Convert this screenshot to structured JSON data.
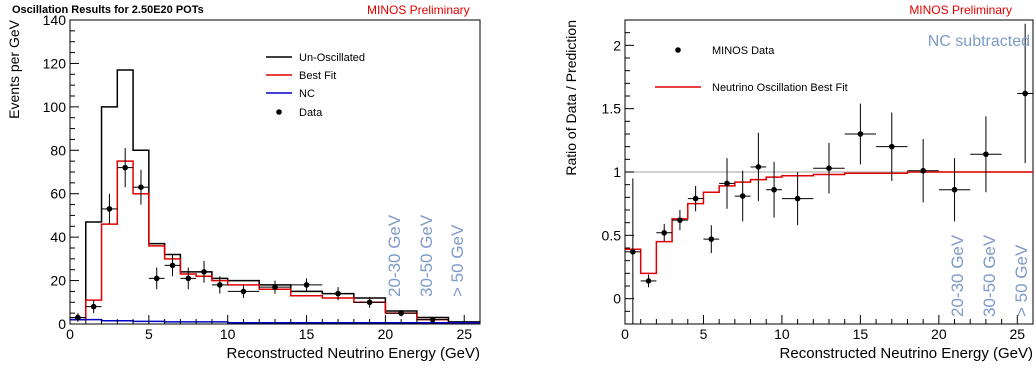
{
  "chart_data": [
    {
      "type": "line",
      "title": "Oscillation Results for 2.50E20 POTs",
      "badge": "MINOS Preliminary",
      "xlabel": "Reconstructed Neutrino Energy (GeV)",
      "ylabel": "Events per GeV",
      "xlim": [
        0,
        26
      ],
      "ylim": [
        0,
        140
      ],
      "xticks": [
        0,
        5,
        10,
        15,
        20,
        25
      ],
      "yticks": [
        0,
        20,
        40,
        60,
        80,
        100,
        120,
        140
      ],
      "legend_position": "top-right",
      "legend": [
        "Un-Oscillated",
        "Best Fit",
        "NC",
        "Data"
      ],
      "series": [
        {
          "name": "Un-Oscillated",
          "color": "#000000",
          "style": "step",
          "bins": [
            [
              0,
              1,
              2
            ],
            [
              1,
              2,
              47
            ],
            [
              2,
              3,
              100
            ],
            [
              3,
              4,
              117
            ],
            [
              4,
              5,
              80
            ],
            [
              5,
              6,
              37
            ],
            [
              6,
              7,
              32
            ],
            [
              7,
              8,
              24
            ],
            [
              8,
              9,
              24
            ],
            [
              9,
              10,
              21
            ],
            [
              10,
              12,
              20
            ],
            [
              12,
              14,
              18
            ],
            [
              14,
              16,
              15
            ],
            [
              16,
              18,
              14
            ],
            [
              18,
              20,
              12
            ],
            [
              20,
              22,
              6
            ],
            [
              22,
              24,
              3
            ],
            [
              24,
              26,
              1
            ]
          ]
        },
        {
          "name": "Best Fit",
          "color": "#e00000",
          "style": "step",
          "bins": [
            [
              0,
              1,
              2
            ],
            [
              1,
              2,
              11
            ],
            [
              2,
              3,
              46
            ],
            [
              3,
              4,
              75
            ],
            [
              4,
              5,
              60
            ],
            [
              5,
              6,
              36
            ],
            [
              6,
              7,
              30
            ],
            [
              7,
              8,
              23
            ],
            [
              8,
              9,
              22
            ],
            [
              9,
              10,
              20
            ],
            [
              10,
              12,
              18
            ],
            [
              12,
              14,
              16
            ],
            [
              14,
              16,
              13
            ],
            [
              16,
              18,
              12
            ],
            [
              18,
              20,
              10
            ],
            [
              20,
              22,
              5
            ],
            [
              22,
              24,
              2
            ],
            [
              24,
              26,
              0.5
            ]
          ]
        },
        {
          "name": "NC",
          "color": "#0000c8",
          "style": "step",
          "bins": [
            [
              0,
              2,
              2
            ],
            [
              2,
              4,
              1.5
            ],
            [
              4,
              6,
              1.2
            ],
            [
              6,
              10,
              1
            ],
            [
              10,
              26,
              0.6
            ]
          ]
        },
        {
          "name": "Data",
          "color": "#000000",
          "style": "points",
          "points": [
            {
              "x": 0.5,
              "y": 3,
              "xerr": 0.5,
              "yerr": 2
            },
            {
              "x": 1.5,
              "y": 8,
              "xerr": 0.5,
              "yerr": 3
            },
            {
              "x": 2.5,
              "y": 53,
              "xerr": 0.5,
              "yerr": 7
            },
            {
              "x": 3.5,
              "y": 72,
              "xerr": 0.5,
              "yerr": 9
            },
            {
              "x": 4.5,
              "y": 63,
              "xerr": 0.5,
              "yerr": 8
            },
            {
              "x": 5.5,
              "y": 21,
              "xerr": 0.5,
              "yerr": 5
            },
            {
              "x": 6.5,
              "y": 27,
              "xerr": 0.5,
              "yerr": 5
            },
            {
              "x": 7.5,
              "y": 21,
              "xerr": 0.5,
              "yerr": 5
            },
            {
              "x": 8.5,
              "y": 24,
              "xerr": 0.5,
              "yerr": 5
            },
            {
              "x": 9.5,
              "y": 18,
              "xerr": 0.5,
              "yerr": 4
            },
            {
              "x": 11,
              "y": 15,
              "xerr": 1,
              "yerr": 3
            },
            {
              "x": 13,
              "y": 17,
              "xerr": 1,
              "yerr": 3
            },
            {
              "x": 15,
              "y": 18,
              "xerr": 1,
              "yerr": 3
            },
            {
              "x": 17,
              "y": 14,
              "xerr": 1,
              "yerr": 3
            },
            {
              "x": 19,
              "y": 10,
              "xerr": 1,
              "yerr": 2.5
            },
            {
              "x": 21,
              "y": 5,
              "xerr": 1,
              "yerr": 1.5
            },
            {
              "x": 23,
              "y": 2,
              "xerr": 1,
              "yerr": 1
            }
          ]
        }
      ],
      "annotations": [
        "20-30 GeV",
        "30-50 GeV",
        "> 50 GeV"
      ]
    },
    {
      "type": "line",
      "badge": "MINOS Preliminary",
      "subtitle": "NC subtracted",
      "xlabel": "Reconstructed Neutrino Energy (GeV)",
      "ylabel": "Ratio of Data / Prediction",
      "xlim": [
        0,
        26
      ],
      "ylim": [
        -0.2,
        2.2
      ],
      "xticks": [
        0,
        5,
        10,
        15,
        20,
        25
      ],
      "yticks": [
        0,
        0.5,
        1,
        1.5,
        2
      ],
      "reference_line": {
        "y": 1,
        "color": "#b4b4b4"
      },
      "legend_position": "top-left",
      "legend": [
        "MINOS Data",
        "Neutrino Oscillation Best Fit"
      ],
      "series": [
        {
          "name": "MINOS Data",
          "color": "#000000",
          "style": "points",
          "points": [
            {
              "x": 0.5,
              "y": 0.37,
              "xerr": 0.5,
              "yerr": 0.58
            },
            {
              "x": 1.5,
              "y": 0.14,
              "xerr": 0.5,
              "yerr": 0.05
            },
            {
              "x": 2.5,
              "y": 0.52,
              "xerr": 0.5,
              "yerr": 0.07
            },
            {
              "x": 3.5,
              "y": 0.62,
              "xerr": 0.5,
              "yerr": 0.08
            },
            {
              "x": 4.5,
              "y": 0.79,
              "xerr": 0.5,
              "yerr": 0.1
            },
            {
              "x": 5.5,
              "y": 0.47,
              "xerr": 0.5,
              "yerr": 0.11
            },
            {
              "x": 6.5,
              "y": 0.91,
              "xerr": 0.5,
              "yerr": 0.2
            },
            {
              "x": 7.5,
              "y": 0.81,
              "xerr": 0.5,
              "yerr": 0.2
            },
            {
              "x": 8.5,
              "y": 1.04,
              "xerr": 0.5,
              "yerr": 0.27
            },
            {
              "x": 9.5,
              "y": 0.86,
              "xerr": 0.5,
              "yerr": 0.22
            },
            {
              "x": 11,
              "y": 0.79,
              "xerr": 1,
              "yerr": 0.21
            },
            {
              "x": 13,
              "y": 1.03,
              "xerr": 1,
              "yerr": 0.2
            },
            {
              "x": 15,
              "y": 1.3,
              "xerr": 1,
              "yerr": 0.24
            },
            {
              "x": 17,
              "y": 1.2,
              "xerr": 1,
              "yerr": 0.27
            },
            {
              "x": 19,
              "y": 1.01,
              "xerr": 1,
              "yerr": 0.25
            },
            {
              "x": 21,
              "y": 0.86,
              "xerr": 1,
              "yerr": 0.25
            },
            {
              "x": 23,
              "y": 1.14,
              "xerr": 1,
              "yerr": 0.3
            },
            {
              "x": 25.5,
              "y": 1.62,
              "xerr": 0.5,
              "yerr": 0.55
            }
          ]
        },
        {
          "name": "Neutrino Oscillation Best Fit",
          "color": "#e00000",
          "style": "step",
          "bins": [
            [
              0,
              1,
              0.39
            ],
            [
              1,
              2,
              0.2
            ],
            [
              2,
              3,
              0.45
            ],
            [
              3,
              4,
              0.63
            ],
            [
              4,
              5,
              0.75
            ],
            [
              5,
              6,
              0.84
            ],
            [
              6,
              7,
              0.89
            ],
            [
              7,
              8,
              0.92
            ],
            [
              8,
              9,
              0.94
            ],
            [
              9,
              10,
              0.96
            ],
            [
              10,
              12,
              0.97
            ],
            [
              12,
              14,
              0.98
            ],
            [
              14,
              16,
              0.99
            ],
            [
              16,
              18,
              0.99
            ],
            [
              18,
              20,
              1.0
            ],
            [
              20,
              22,
              1.0
            ],
            [
              22,
              24,
              1.0
            ],
            [
              24,
              26,
              1.0
            ]
          ]
        }
      ],
      "annotations": [
        "20-30 GeV",
        "30-50 GeV",
        "> 50 GeV"
      ]
    }
  ]
}
